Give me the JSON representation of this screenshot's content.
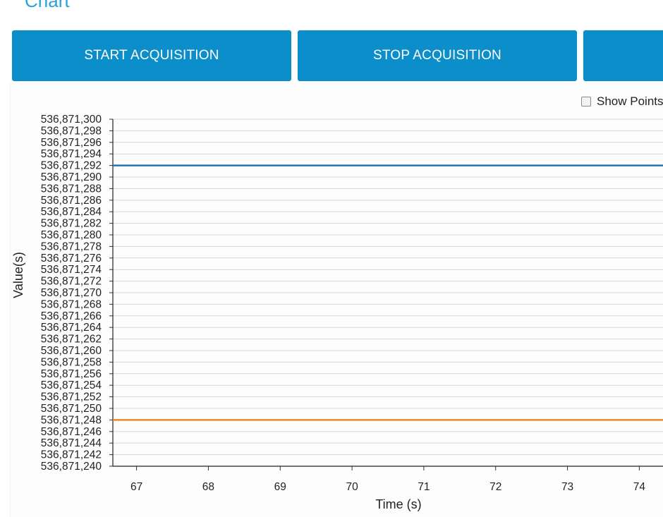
{
  "page": {
    "section_title": "Chart"
  },
  "toolbar": {
    "start_label": "START ACQUISITION",
    "stop_label": "STOP ACQUISITION"
  },
  "options": {
    "show_points_label": "Show Points",
    "show_points_checked": false
  },
  "colors": {
    "button_bg": "#0b8ec9",
    "button_text": "#ffffff",
    "title_text": "#27a3dc",
    "series_blue": "#1f77b4",
    "series_orange": "#ff8c00",
    "grid": "#d6d6d6"
  },
  "chart_data": {
    "type": "line",
    "xlabel": "Time (s)",
    "ylabel": "Value(s)",
    "xlim": [
      66.67,
      74.33
    ],
    "ylim": [
      536871240,
      536871300
    ],
    "x_ticks": [
      67,
      68,
      69,
      70,
      71,
      72,
      73,
      74
    ],
    "y_ticks": [
      536871240,
      536871242,
      536871244,
      536871246,
      536871248,
      536871250,
      536871252,
      536871254,
      536871256,
      536871258,
      536871260,
      536871262,
      536871264,
      536871266,
      536871268,
      536871270,
      536871272,
      536871274,
      536871276,
      536871278,
      536871280,
      536871282,
      536871284,
      536871286,
      536871288,
      536871290,
      536871292,
      536871294,
      536871296,
      536871298,
      536871300
    ],
    "grid": true,
    "series": [
      {
        "color": "#1f77b4",
        "x": [
          66.67,
          74.33
        ],
        "values": [
          536871292,
          536871292
        ]
      },
      {
        "color": "#e8892a",
        "x": [
          66.67,
          74.33
        ],
        "values": [
          536871248,
          536871248
        ]
      }
    ]
  }
}
